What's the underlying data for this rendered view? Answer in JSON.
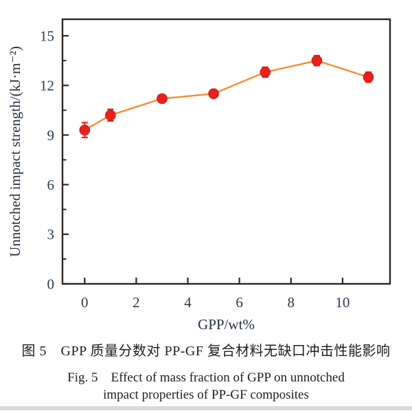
{
  "figure": {
    "caption_zh": "图 5　GPP 质量分数对 PP-GF 复合材料无缺口冲击性能影响",
    "caption_en_line1": "Fig. 5　Effect of mass fraction of GPP on unnotched",
    "caption_en_line2": "impact properties of PP-GF composites"
  },
  "chart_data": {
    "type": "line",
    "title": "",
    "xlabel": "GPP/wt%",
    "ylabel": "Unnotched impact strength/(kJ·m⁻²)",
    "x": [
      0,
      1,
      3,
      5,
      7,
      9,
      11
    ],
    "series": [
      {
        "name": "Unnotched impact strength",
        "values": [
          9.3,
          10.2,
          11.2,
          11.5,
          12.8,
          13.5,
          12.5
        ],
        "errors": [
          0.45,
          0.35,
          0.1,
          0.1,
          0.3,
          0.3,
          0.3
        ]
      }
    ],
    "xlim": [
      -0.86,
      11.84
    ],
    "ylim": [
      0,
      16
    ],
    "x_ticks": [
      0,
      2,
      4,
      6,
      8,
      10
    ],
    "y_ticks": [
      0,
      3,
      6,
      9,
      12,
      15
    ],
    "y_minor_ticks": [
      1.5,
      4.5,
      7.5,
      10.5,
      13.5
    ],
    "grid": false,
    "legend_position": "none",
    "colors": {
      "line": "#f68b33",
      "marker": "#e8211d",
      "marker_edge": "#d41313",
      "error_bar": "#e8211d",
      "axis": "#2b2523",
      "tick_label": "#2b3a4e",
      "axis_label": "#23303f"
    }
  }
}
